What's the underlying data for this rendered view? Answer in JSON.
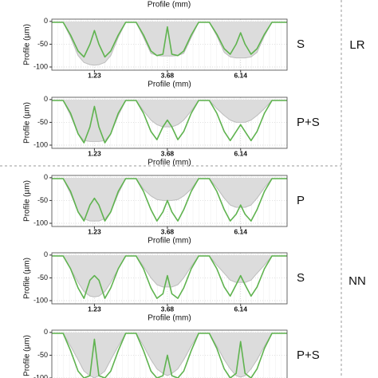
{
  "top_caption": "Profile (mm)",
  "groups": [
    {
      "label": "LR"
    },
    {
      "label": "NN"
    }
  ],
  "chart_data": [
    {
      "type": "line",
      "label": "S",
      "xlabel": "Profile (mm)",
      "ylabel": "Profile (µm)",
      "x": [
        -0.2,
        0.18,
        0.43,
        0.68,
        0.88,
        1.08,
        1.23,
        1.38,
        1.58,
        1.78,
        2.03,
        2.28,
        2.45,
        2.63,
        2.88,
        3.13,
        3.33,
        3.53,
        3.68,
        3.83,
        4.03,
        4.23,
        4.48,
        4.73,
        4.9,
        5.09,
        5.34,
        5.59,
        5.79,
        5.99,
        6.14,
        6.29,
        6.49,
        6.69,
        6.94,
        7.19,
        7.7
      ],
      "series": [
        {
          "color": "#bdbdbd",
          "fill": "#dcdcdc",
          "values": [
            -2,
            -2,
            -35,
            -75,
            -90,
            -95,
            -96,
            -95,
            -90,
            -75,
            -35,
            -2,
            -2,
            -2,
            -35,
            -70,
            -75,
            -76,
            -76,
            -76,
            -75,
            -70,
            -35,
            -2,
            -2,
            -2,
            -32,
            -68,
            -78,
            -80,
            -80,
            -80,
            -78,
            -68,
            -32,
            -2,
            -2
          ]
        },
        {
          "color": "#5fb34f",
          "values": [
            -2,
            -2,
            -30,
            -65,
            -78,
            -50,
            -20,
            -50,
            -78,
            -65,
            -30,
            -2,
            -2,
            -2,
            -30,
            -65,
            -75,
            -72,
            -12,
            -72,
            -75,
            -65,
            -30,
            -2,
            -2,
            -2,
            -28,
            -60,
            -72,
            -50,
            -25,
            -50,
            -72,
            -60,
            -28,
            -2,
            -2
          ]
        }
      ],
      "xlim": [
        -0.2,
        7.7
      ],
      "ylim": [
        -107,
        5
      ],
      "xticks": [
        1.23,
        3.68,
        6.14
      ],
      "yticks": [
        0,
        -50,
        -100
      ],
      "grid": true
    },
    {
      "type": "line",
      "label": "P+S",
      "xlabel": "Profile (mm)",
      "ylabel": "Profile (µm)",
      "x": [
        -0.2,
        0.18,
        0.43,
        0.68,
        0.88,
        1.08,
        1.23,
        1.38,
        1.58,
        1.78,
        2.03,
        2.28,
        2.45,
        2.63,
        2.88,
        3.13,
        3.33,
        3.53,
        3.68,
        3.83,
        4.03,
        4.23,
        4.48,
        4.73,
        4.9,
        5.09,
        5.34,
        5.59,
        5.79,
        5.99,
        6.14,
        6.29,
        6.49,
        6.69,
        6.94,
        7.19,
        7.7
      ],
      "series": [
        {
          "color": "#bdbdbd",
          "fill": "#dcdcdc",
          "values": [
            -2,
            -2,
            -35,
            -75,
            -90,
            -92,
            -92,
            -92,
            -90,
            -75,
            -35,
            -2,
            -2,
            -2,
            -25,
            -45,
            -55,
            -60,
            -60,
            -60,
            -55,
            -45,
            -25,
            -2,
            -2,
            -2,
            -20,
            -35,
            -45,
            -50,
            -50,
            -50,
            -45,
            -35,
            -20,
            -2,
            -2
          ]
        },
        {
          "color": "#5fb34f",
          "values": [
            -2,
            -2,
            -30,
            -75,
            -95,
            -60,
            -15,
            -60,
            -95,
            -75,
            -30,
            -2,
            -2,
            -2,
            -30,
            -70,
            -88,
            -60,
            -45,
            -60,
            -88,
            -70,
            -30,
            -2,
            -2,
            -2,
            -30,
            -70,
            -90,
            -70,
            -55,
            -70,
            -90,
            -70,
            -30,
            -2,
            -2
          ]
        }
      ],
      "xlim": [
        -0.2,
        7.7
      ],
      "ylim": [
        -107,
        5
      ],
      "xticks": [
        1.23,
        3.68,
        6.14
      ],
      "yticks": [
        0,
        -50,
        -100
      ],
      "grid": true
    },
    {
      "type": "line",
      "label": "P",
      "xlabel": "Profile (mm)",
      "ylabel": "Profile (µm)",
      "x": [
        -0.2,
        0.18,
        0.43,
        0.68,
        0.88,
        1.08,
        1.23,
        1.38,
        1.58,
        1.78,
        2.03,
        2.28,
        2.45,
        2.63,
        2.88,
        3.13,
        3.33,
        3.53,
        3.68,
        3.83,
        4.03,
        4.23,
        4.48,
        4.73,
        4.9,
        5.09,
        5.34,
        5.59,
        5.79,
        5.99,
        6.14,
        6.29,
        6.49,
        6.69,
        6.94,
        7.19,
        7.7
      ],
      "series": [
        {
          "color": "#bdbdbd",
          "fill": "#dcdcdc",
          "values": [
            -2,
            -2,
            -35,
            -75,
            -90,
            -95,
            -95,
            -95,
            -90,
            -75,
            -35,
            -2,
            -2,
            -2,
            -25,
            -40,
            -48,
            -50,
            -50,
            -50,
            -48,
            -40,
            -25,
            -2,
            -2,
            -2,
            -22,
            -45,
            -60,
            -65,
            -65,
            -65,
            -60,
            -45,
            -22,
            -2,
            -2
          ]
        },
        {
          "color": "#5fb34f",
          "values": [
            -2,
            -2,
            -30,
            -75,
            -95,
            -60,
            -45,
            -60,
            -95,
            -75,
            -30,
            -2,
            -2,
            -2,
            -30,
            -70,
            -95,
            -75,
            -50,
            -75,
            -95,
            -70,
            -30,
            -2,
            -2,
            -2,
            -30,
            -70,
            -95,
            -80,
            -60,
            -80,
            -95,
            -70,
            -30,
            -2,
            -2
          ]
        }
      ],
      "xlim": [
        -0.2,
        7.7
      ],
      "ylim": [
        -107,
        5
      ],
      "xticks": [
        1.23,
        3.68,
        6.14
      ],
      "yticks": [
        0,
        -50,
        -100
      ],
      "grid": true
    },
    {
      "type": "line",
      "label": "S",
      "xlabel": "Profile (mm)",
      "ylabel": "Profile (µm)",
      "x": [
        -0.2,
        0.18,
        0.43,
        0.68,
        0.88,
        1.08,
        1.23,
        1.38,
        1.58,
        1.78,
        2.03,
        2.28,
        2.45,
        2.63,
        2.88,
        3.13,
        3.33,
        3.53,
        3.68,
        3.83,
        4.03,
        4.23,
        4.48,
        4.73,
        4.9,
        5.09,
        5.34,
        5.59,
        5.79,
        5.99,
        6.14,
        6.29,
        6.49,
        6.69,
        6.94,
        7.19,
        7.7
      ],
      "series": [
        {
          "color": "#bdbdbd",
          "fill": "#dcdcdc",
          "values": [
            -2,
            -2,
            -30,
            -60,
            -80,
            -90,
            -92,
            -90,
            -80,
            -60,
            -30,
            -2,
            -2,
            -2,
            -25,
            -50,
            -65,
            -70,
            -70,
            -70,
            -65,
            -50,
            -25,
            -2,
            -2,
            -2,
            -22,
            -40,
            -55,
            -60,
            -60,
            -60,
            -55,
            -40,
            -22,
            -2,
            -2
          ]
        },
        {
          "color": "#5fb34f",
          "values": [
            -2,
            -2,
            -30,
            -72,
            -95,
            -55,
            -45,
            -55,
            -95,
            -72,
            -30,
            -2,
            -2,
            -2,
            -30,
            -72,
            -95,
            -85,
            -45,
            -85,
            -95,
            -72,
            -30,
            -2,
            -2,
            -2,
            -30,
            -70,
            -90,
            -65,
            -45,
            -65,
            -90,
            -70,
            -30,
            -2,
            -2
          ]
        }
      ],
      "xlim": [
        -0.2,
        7.7
      ],
      "ylim": [
        -107,
        5
      ],
      "xticks": [
        1.23,
        3.68,
        6.14
      ],
      "yticks": [
        0,
        -50,
        -100
      ],
      "grid": true
    },
    {
      "type": "line",
      "label": "P+S",
      "ylabel": "Profile (µm)",
      "x": [
        -0.2,
        0.18,
        0.43,
        0.68,
        0.88,
        1.08,
        1.23,
        1.38,
        1.58,
        1.78,
        2.03,
        2.28,
        2.45,
        2.63,
        2.88,
        3.13,
        3.33,
        3.53,
        3.68,
        3.83,
        4.03,
        4.23,
        4.48,
        4.73,
        4.9,
        5.09,
        5.34,
        5.59,
        5.79,
        5.99,
        6.14,
        6.29,
        6.49,
        6.69,
        6.94,
        7.19,
        7.7
      ],
      "series": [
        {
          "color": "#bdbdbd",
          "fill": "#dcdcdc",
          "values": [
            -2,
            -2,
            -30,
            -60,
            -85,
            -95,
            -100,
            -95,
            -85,
            -60,
            -30,
            -2,
            -2,
            -2,
            -30,
            -60,
            -80,
            -90,
            -95,
            -90,
            -80,
            -60,
            -30,
            -2,
            -2,
            -2,
            -30,
            -60,
            -80,
            -95,
            -98,
            -95,
            -80,
            -60,
            -30,
            -2,
            -2
          ]
        },
        {
          "color": "#5fb34f",
          "values": [
            -2,
            -2,
            -40,
            -85,
            -100,
            -95,
            -15,
            -95,
            -100,
            -85,
            -40,
            -2,
            -2,
            -2,
            -40,
            -85,
            -100,
            -95,
            -50,
            -95,
            -100,
            -85,
            -40,
            -2,
            -2,
            -2,
            -35,
            -80,
            -100,
            -90,
            -20,
            -90,
            -100,
            -80,
            -35,
            -2,
            -2
          ]
        }
      ],
      "xlim": [
        -0.2,
        7.7
      ],
      "ylim": [
        -107,
        5
      ],
      "yticks": [
        0,
        -50,
        -100
      ],
      "grid": true
    }
  ]
}
